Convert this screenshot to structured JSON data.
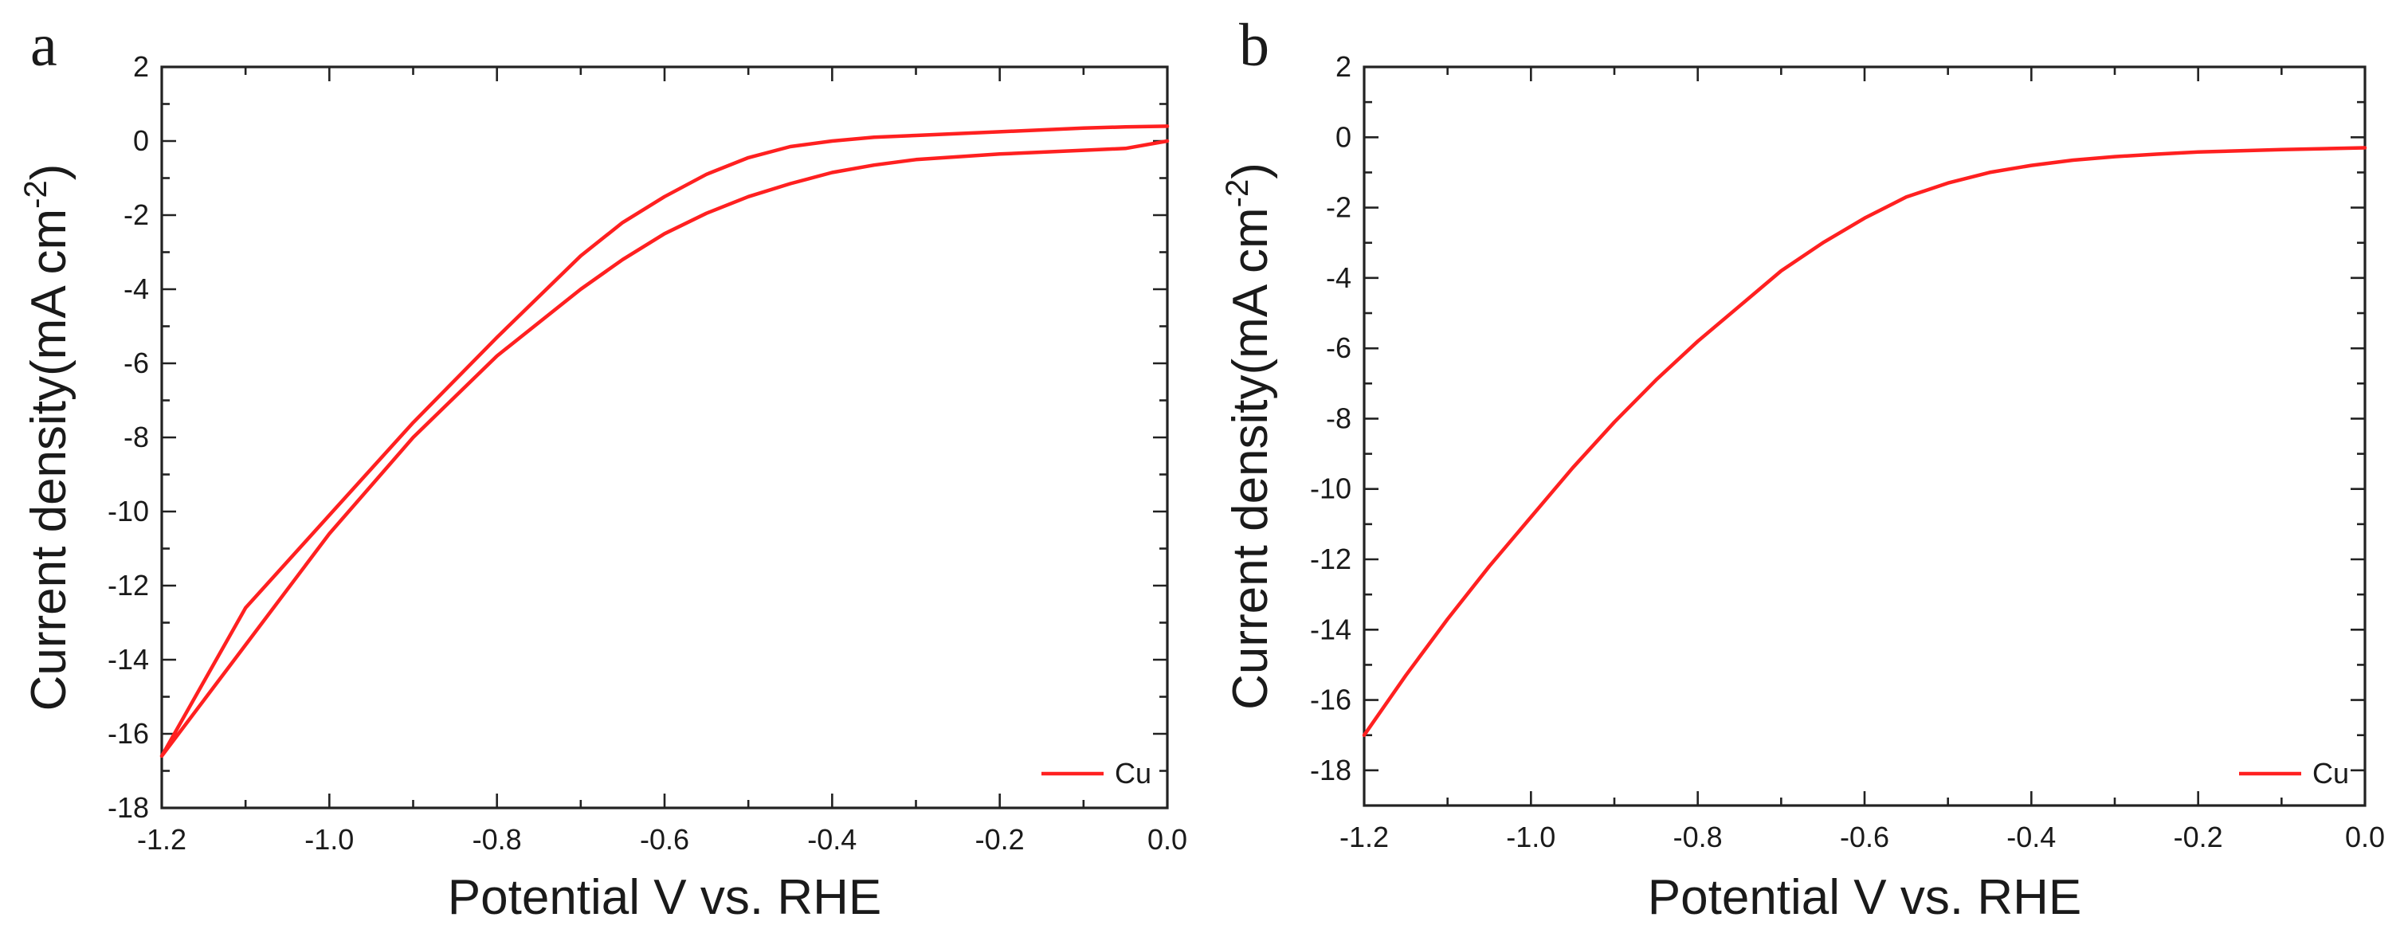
{
  "colors": {
    "series": "#ff2020",
    "axis": "#222222"
  },
  "chart_data": [
    {
      "type": "line",
      "panel_label": "a",
      "xlabel": "Potential V vs. RHE",
      "ylabel_main": "Current density(mA cm",
      "ylabel_sup": "-2",
      "ylabel_close": ")",
      "xlim": [
        -1.2,
        0.0
      ],
      "ylim": [
        -18,
        2
      ],
      "x_ticks": [
        -1.2,
        -1.0,
        -0.8,
        -0.6,
        -0.4,
        -0.2,
        0.0
      ],
      "x_tick_labels": [
        "-1.2",
        "-1.0",
        "-0.8",
        "-0.6",
        "-0.4",
        "-0.2",
        "0.0"
      ],
      "y_ticks": [
        2,
        0,
        -2,
        -4,
        -6,
        -8,
        -10,
        -12,
        -14,
        -16,
        -18
      ],
      "y_tick_labels": [
        "2",
        "0",
        "-2",
        "-4",
        "-6",
        "-8",
        "-10",
        "-12",
        "-14",
        "-16",
        "-18"
      ],
      "legend": [
        "Cu"
      ],
      "legend_position": "bottom-right",
      "series": [
        {
          "name": "Cu",
          "color": "#ff2020",
          "x": [
            0.0,
            -0.05,
            -0.1,
            -0.2,
            -0.3,
            -0.35,
            -0.4,
            -0.45,
            -0.5,
            -0.55,
            -0.6,
            -0.65,
            -0.7,
            -0.8,
            -0.9,
            -1.0,
            -1.1,
            -1.2,
            -1.15,
            -1.1,
            -1.0,
            -0.9,
            -0.8,
            -0.7,
            -0.65,
            -0.6,
            -0.55,
            -0.5,
            -0.45,
            -0.4,
            -0.35,
            -0.3,
            -0.2,
            -0.1,
            -0.05,
            0.0
          ],
          "y": [
            0.0,
            -0.2,
            -0.25,
            -0.35,
            -0.5,
            -0.65,
            -0.85,
            -1.15,
            -1.5,
            -1.95,
            -2.5,
            -3.2,
            -4.0,
            -5.8,
            -8.0,
            -10.6,
            -13.6,
            -16.6,
            -14.6,
            -12.6,
            -10.1,
            -7.6,
            -5.3,
            -3.1,
            -2.2,
            -1.5,
            -0.9,
            -0.45,
            -0.15,
            0.0,
            0.1,
            0.15,
            0.25,
            0.35,
            0.38,
            0.4
          ]
        }
      ]
    },
    {
      "type": "line",
      "panel_label": "b",
      "xlabel": "Potential V vs. RHE",
      "ylabel_main": "Current density(mA cm",
      "ylabel_sup": "-2",
      "ylabel_close": ")",
      "xlim": [
        -1.2,
        0.0
      ],
      "ylim": [
        -19,
        2
      ],
      "x_ticks": [
        -1.2,
        -1.0,
        -0.8,
        -0.6,
        -0.4,
        -0.2,
        0.0
      ],
      "x_tick_labels": [
        "-1.2",
        "-1.0",
        "-0.8",
        "-0.6",
        "-0.4",
        "-0.2",
        "0.0"
      ],
      "y_ticks": [
        2,
        0,
        -2,
        -4,
        -6,
        -8,
        -10,
        -12,
        -14,
        -16,
        -18
      ],
      "y_tick_labels": [
        "2",
        "0",
        "-2",
        "-4",
        "-6",
        "-8",
        "-10",
        "-12",
        "-14",
        "-16",
        "-18"
      ],
      "legend": [
        "Cu"
      ],
      "legend_position": "bottom-right",
      "series": [
        {
          "name": "Cu",
          "color": "#ff2020",
          "x": [
            -1.2,
            -1.15,
            -1.1,
            -1.05,
            -1.0,
            -0.95,
            -0.9,
            -0.85,
            -0.8,
            -0.75,
            -0.7,
            -0.65,
            -0.6,
            -0.55,
            -0.5,
            -0.45,
            -0.4,
            -0.35,
            -0.3,
            -0.25,
            -0.2,
            -0.1,
            0.0
          ],
          "y": [
            -17.0,
            -15.3,
            -13.7,
            -12.2,
            -10.8,
            -9.4,
            -8.1,
            -6.9,
            -5.8,
            -4.8,
            -3.8,
            -3.0,
            -2.3,
            -1.7,
            -1.3,
            -1.0,
            -0.8,
            -0.65,
            -0.55,
            -0.48,
            -0.42,
            -0.35,
            -0.3
          ]
        }
      ]
    }
  ]
}
